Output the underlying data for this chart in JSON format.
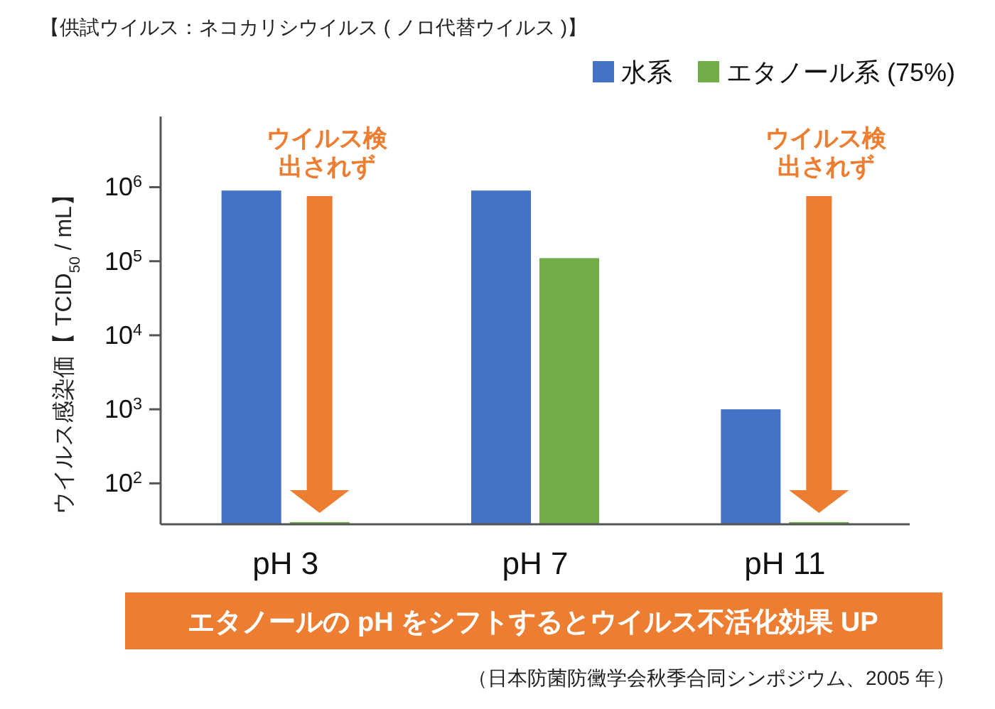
{
  "chart_data": {
    "type": "bar",
    "log": "y",
    "title": "【供試ウイルス：ネコカリシウイルス ( ノロ代替ウイルス )】",
    "ylabel": "ウイルス感染価【 TCID$_{50}$ / mL】",
    "categories": [
      "pH 3",
      "pH 7",
      "pH 11"
    ],
    "series": [
      {
        "name": "水系",
        "color": "#4472c4",
        "values": [
          900000,
          900000,
          1000
        ]
      },
      {
        "name": "エタノール系 (75%)",
        "color": "#70ad47",
        "values": [
          30,
          110000,
          30
        ]
      }
    ],
    "ylim": [
      28,
      9000000
    ],
    "yticks": [
      {
        "value": 100,
        "label": "10$^{2}$"
      },
      {
        "value": 1000,
        "label": "10$^{3}$"
      },
      {
        "value": 10000,
        "label": "10$^{4}$"
      },
      {
        "value": 100000,
        "label": "10$^{5}$"
      },
      {
        "value": 1000000,
        "label": "10$^{6}$"
      }
    ],
    "legend": "top right",
    "annotations": [
      "ウイルス検出されず",
      "ウイルス検出されず",
      "エタノールの pH をシフトするとウイルス不活化効果 UP",
      "（日本防菌防黴学会秋季合同シンポジウム、2005 年）"
    ]
  }
}
